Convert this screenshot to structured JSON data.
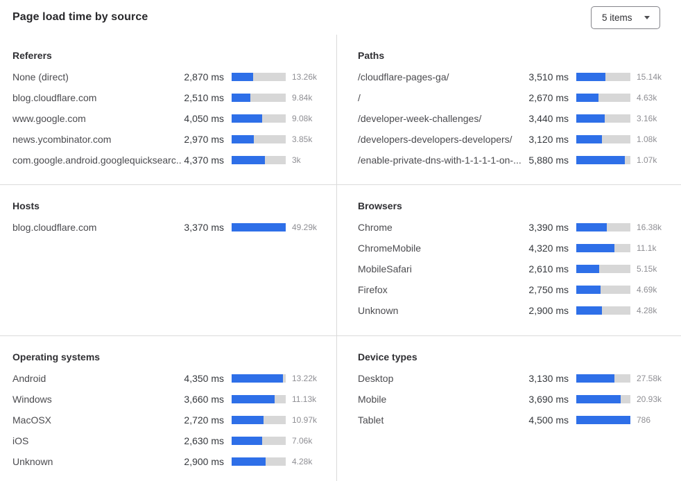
{
  "header": {
    "title": "Page load time by source",
    "items_dropdown_label": "5 items"
  },
  "colors": {
    "bar_fill": "#2e6fe8",
    "bar_track": "#d7d7d7",
    "divider": "#dadada",
    "count_text": "#8e8e93"
  },
  "chart_data": [
    {
      "type": "bar",
      "title": "Referers",
      "bar_orientation": "horizontal",
      "unit": "ms",
      "rows": [
        {
          "label": "None (direct)",
          "value_ms": 2870,
          "value_text": "2,870 ms",
          "count": "13.26k",
          "bar_pct": 40
        },
        {
          "label": "blog.cloudflare.com",
          "value_ms": 2510,
          "value_text": "2,510 ms",
          "count": "9.84k",
          "bar_pct": 35
        },
        {
          "label": "www.google.com",
          "value_ms": 4050,
          "value_text": "4,050 ms",
          "count": "9.08k",
          "bar_pct": 56
        },
        {
          "label": "news.ycombinator.com",
          "value_ms": 2970,
          "value_text": "2,970 ms",
          "count": "3.85k",
          "bar_pct": 41
        },
        {
          "label": "com.google.android.googlequicksearc...",
          "value_ms": 4370,
          "value_text": "4,370 ms",
          "count": "3k",
          "bar_pct": 61
        }
      ]
    },
    {
      "type": "bar",
      "title": "Paths",
      "bar_orientation": "horizontal",
      "unit": "ms",
      "rows": [
        {
          "label": "/cloudflare-pages-ga/",
          "value_ms": 3510,
          "value_text": "3,510 ms",
          "count": "15.14k",
          "bar_pct": 54
        },
        {
          "label": "/",
          "value_ms": 2670,
          "value_text": "2,670 ms",
          "count": "4.63k",
          "bar_pct": 41
        },
        {
          "label": "/developer-week-challenges/",
          "value_ms": 3440,
          "value_text": "3,440 ms",
          "count": "3.16k",
          "bar_pct": 53
        },
        {
          "label": "/developers-developers-developers/",
          "value_ms": 3120,
          "value_text": "3,120 ms",
          "count": "1.08k",
          "bar_pct": 48
        },
        {
          "label": "/enable-private-dns-with-1-1-1-1-on-...",
          "value_ms": 5880,
          "value_text": "5,880 ms",
          "count": "1.07k",
          "bar_pct": 90
        }
      ]
    },
    {
      "type": "bar",
      "title": "Hosts",
      "bar_orientation": "horizontal",
      "unit": "ms",
      "rows": [
        {
          "label": "blog.cloudflare.com",
          "value_ms": 3370,
          "value_text": "3,370 ms",
          "count": "49.29k",
          "bar_pct": 100
        }
      ]
    },
    {
      "type": "bar",
      "title": "Browsers",
      "bar_orientation": "horizontal",
      "unit": "ms",
      "rows": [
        {
          "label": "Chrome",
          "value_ms": 3390,
          "value_text": "3,390 ms",
          "count": "16.38k",
          "bar_pct": 56
        },
        {
          "label": "ChromeMobile",
          "value_ms": 4320,
          "value_text": "4,320 ms",
          "count": "11.1k",
          "bar_pct": 71
        },
        {
          "label": "MobileSafari",
          "value_ms": 2610,
          "value_text": "2,610 ms",
          "count": "5.15k",
          "bar_pct": 42
        },
        {
          "label": "Firefox",
          "value_ms": 2750,
          "value_text": "2,750 ms",
          "count": "4.69k",
          "bar_pct": 45
        },
        {
          "label": "Unknown",
          "value_ms": 2900,
          "value_text": "2,900 ms",
          "count": "4.28k",
          "bar_pct": 48
        }
      ]
    },
    {
      "type": "bar",
      "title": "Operating systems",
      "bar_orientation": "horizontal",
      "unit": "ms",
      "rows": [
        {
          "label": "Android",
          "value_ms": 4350,
          "value_text": "4,350 ms",
          "count": "13.22k",
          "bar_pct": 95
        },
        {
          "label": "Windows",
          "value_ms": 3660,
          "value_text": "3,660 ms",
          "count": "11.13k",
          "bar_pct": 80
        },
        {
          "label": "MacOSX",
          "value_ms": 2720,
          "value_text": "2,720 ms",
          "count": "10.97k",
          "bar_pct": 59
        },
        {
          "label": "iOS",
          "value_ms": 2630,
          "value_text": "2,630 ms",
          "count": "7.06k",
          "bar_pct": 57
        },
        {
          "label": "Unknown",
          "value_ms": 2900,
          "value_text": "2,900 ms",
          "count": "4.28k",
          "bar_pct": 63
        }
      ]
    },
    {
      "type": "bar",
      "title": "Device types",
      "bar_orientation": "horizontal",
      "unit": "ms",
      "rows": [
        {
          "label": "Desktop",
          "value_ms": 3130,
          "value_text": "3,130 ms",
          "count": "27.58k",
          "bar_pct": 70
        },
        {
          "label": "Mobile",
          "value_ms": 3690,
          "value_text": "3,690 ms",
          "count": "20.93k",
          "bar_pct": 82
        },
        {
          "label": "Tablet",
          "value_ms": 4500,
          "value_text": "4,500 ms",
          "count": "786",
          "bar_pct": 100
        }
      ]
    }
  ]
}
